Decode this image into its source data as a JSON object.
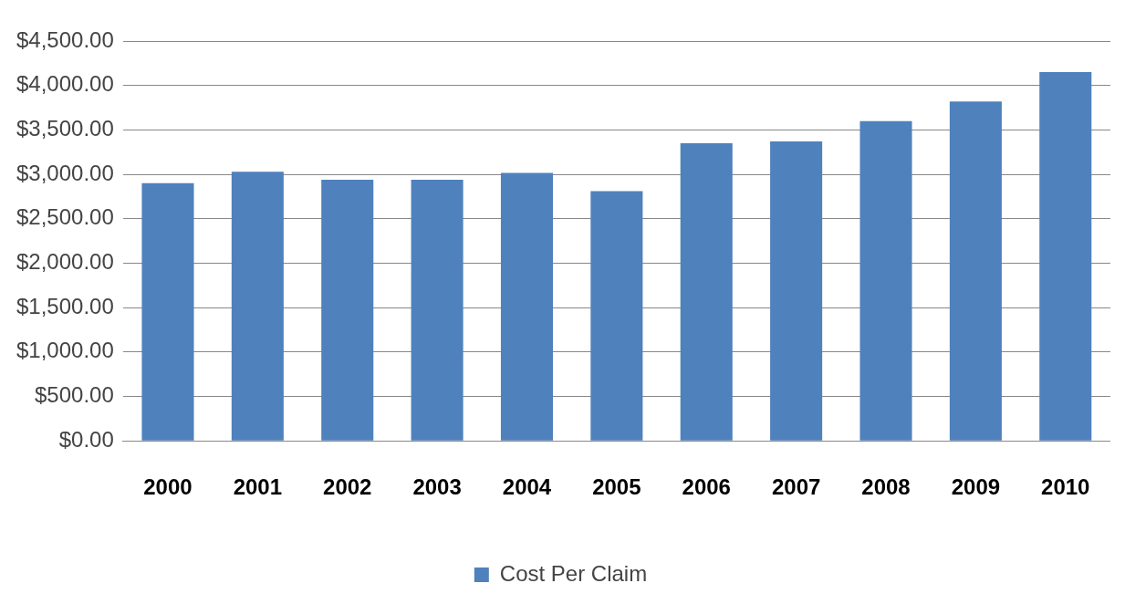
{
  "chart_data": {
    "type": "bar",
    "categories": [
      "2000",
      "2001",
      "2002",
      "2003",
      "2004",
      "2005",
      "2006",
      "2007",
      "2008",
      "2009",
      "2010"
    ],
    "series": [
      {
        "name": "Cost Per Claim",
        "color": "#4f81bd",
        "values": [
          2900,
          3030,
          2940,
          2940,
          3015,
          2810,
          3350,
          3370,
          3600,
          3820,
          4150
        ]
      }
    ],
    "ylim": [
      0,
      4500
    ],
    "yticks": [
      {
        "value": 0,
        "label": "$0.00"
      },
      {
        "value": 500,
        "label": "$500.00"
      },
      {
        "value": 1000,
        "label": "$1,000.00"
      },
      {
        "value": 1500,
        "label": "$1,500.00"
      },
      {
        "value": 2000,
        "label": "$2,000.00"
      },
      {
        "value": 2500,
        "label": "$2,500.00"
      },
      {
        "value": 3000,
        "label": "$3,000.00"
      },
      {
        "value": 3500,
        "label": "$3,500.00"
      },
      {
        "value": 4000,
        "label": "$4,000.00"
      },
      {
        "value": 4500,
        "label": "$4,500.00"
      }
    ],
    "grid": "y",
    "legend": "bottom"
  }
}
